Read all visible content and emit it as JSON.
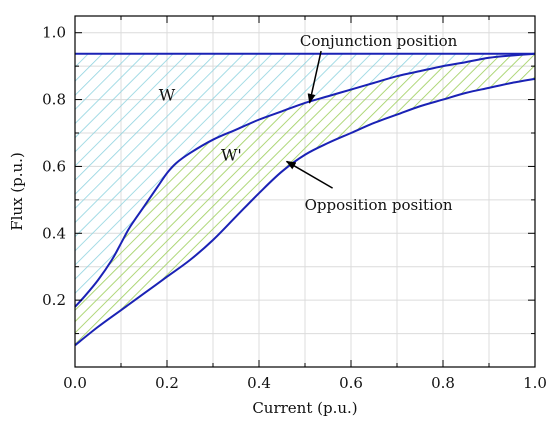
{
  "chart_data": {
    "type": "area",
    "xlabel": "Current (p.u.)",
    "ylabel": "Flux (p.u.)",
    "xlim": [
      0,
      1
    ],
    "ylim": [
      0,
      1.05
    ],
    "x_ticks": [
      0.0,
      0.2,
      0.4,
      0.6,
      0.8,
      1.0
    ],
    "x_tick_labels": [
      "0.0",
      "0.2",
      "0.4",
      "0.6",
      "0.8",
      "1.0"
    ],
    "y_ticks": [
      0.2,
      0.4,
      0.6,
      0.8,
      1.0
    ],
    "y_tick_labels": [
      "0.2",
      "0.4",
      "0.6",
      "0.8",
      "1.0"
    ],
    "grid": true,
    "series": [
      {
        "x": [
          0,
          0.02,
          0.05,
          0.08,
          0.1,
          0.12,
          0.15,
          0.18,
          0.2,
          0.22,
          0.25,
          0.3,
          0.35,
          0.4,
          0.45,
          0.5,
          0.55,
          0.6,
          0.65,
          0.7,
          0.75,
          0.8,
          0.85,
          0.9,
          0.95,
          1.0
        ],
        "y": [
          0.18,
          0.21,
          0.26,
          0.32,
          0.37,
          0.42,
          0.48,
          0.54,
          0.58,
          0.61,
          0.64,
          0.68,
          0.71,
          0.74,
          0.765,
          0.79,
          0.81,
          0.83,
          0.85,
          0.87,
          0.885,
          0.9,
          0.912,
          0.925,
          0.932,
          0.937
        ]
      },
      {
        "x": [
          0,
          0.05,
          0.1,
          0.15,
          0.2,
          0.25,
          0.3,
          0.35,
          0.4,
          0.45,
          0.5,
          0.55,
          0.6,
          0.65,
          0.7,
          0.75,
          0.8,
          0.85,
          0.9,
          0.95,
          1.0
        ],
        "y": [
          0.065,
          0.12,
          0.17,
          0.22,
          0.27,
          0.32,
          0.38,
          0.45,
          0.52,
          0.585,
          0.635,
          0.67,
          0.7,
          0.73,
          0.755,
          0.78,
          0.8,
          0.82,
          0.835,
          0.85,
          0.862
        ]
      }
    ],
    "saturation_level": 0.937,
    "colors": {
      "curve": "#1a22b5",
      "w_hatch": "#8fd3e0",
      "w_prime_hatch": "#a6d36a",
      "grid": "#dcdcdc"
    },
    "regions": [
      {
        "label": "W",
        "x": 0.2,
        "y": 0.815
      },
      {
        "label": "W'",
        "x": 0.34,
        "y": 0.635
      }
    ],
    "annotations": [
      {
        "text": "Conjunction position",
        "text_x": 0.66,
        "text_y": 0.975,
        "arrow_from": [
          0.535,
          0.945
        ],
        "arrow_to": [
          0.51,
          0.79
        ]
      },
      {
        "text": "Opposition position",
        "text_x": 0.66,
        "text_y": 0.485,
        "arrow_from": [
          0.56,
          0.535
        ],
        "arrow_to": [
          0.46,
          0.615
        ]
      }
    ]
  }
}
